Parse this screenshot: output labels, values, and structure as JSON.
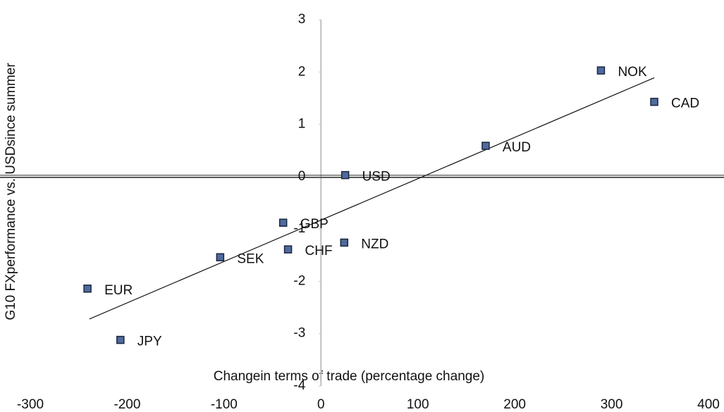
{
  "chart_data": {
    "type": "scatter",
    "x_label": "Changein terms of trade (percentage change)",
    "y_label": "G10 FXperformance vs. USDsince summer",
    "labels": [
      "NOK",
      "CAD",
      "AUD",
      "USD",
      "GBP",
      "NZD",
      "CHF",
      "SEK",
      "EUR",
      "JPY"
    ],
    "x": [
      289,
      344,
      170,
      25,
      -39,
      24,
      -34,
      -104,
      -241,
      -207
    ],
    "y": [
      2.03,
      1.43,
      0.59,
      0.03,
      -0.88,
      -1.26,
      -1.39,
      -1.54,
      -2.14,
      -3.12
    ],
    "color": "#4f6a9c",
    "trendline": {
      "x": [
        -239,
        344
      ],
      "y": [
        -2.72,
        1.89
      ]
    },
    "xlim": [
      -300,
      400
    ],
    "ylim": [
      -4,
      3
    ],
    "xticks": [
      -300,
      -200,
      -100,
      0,
      100,
      200,
      300,
      400
    ],
    "yticks": [
      -4,
      -3,
      -2,
      -1,
      0,
      1,
      2,
      3
    ]
  }
}
